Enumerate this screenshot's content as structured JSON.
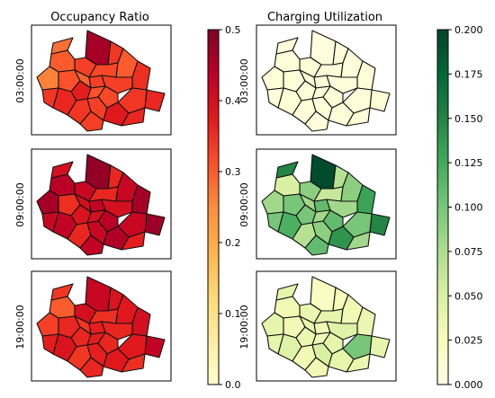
{
  "chart_data": [
    {
      "type": "heatmap",
      "title": "Occupancy Ratio",
      "row_labels": [
        "03:00:00",
        "09:00:00",
        "19:00:00"
      ],
      "colormap": "YlOrRd",
      "colorbar_range": [
        0,
        0.5
      ],
      "colorbar_ticks": [
        "0.0",
        "0.1",
        "0.2",
        "0.3",
        "0.4",
        "0.5"
      ],
      "rows": [
        [
          0.46,
          0.33,
          0.3,
          0.28,
          0.34,
          0.26,
          0.31,
          0.29,
          0.33,
          0.32,
          0.3,
          0.35,
          0.33,
          0.36,
          0.34,
          0.32,
          0.31,
          0.37,
          0.36,
          0.34,
          0.33,
          0.38,
          0.33,
          0.36,
          0.34
        ],
        [
          0.48,
          0.42,
          0.44,
          0.4,
          0.36,
          0.46,
          0.35,
          0.4,
          0.43,
          0.36,
          0.42,
          0.46,
          0.4,
          0.47,
          0.42,
          0.44,
          0.4,
          0.39,
          0.43,
          0.36,
          0.42,
          0.45,
          0.43,
          0.37,
          0.42
        ],
        [
          0.42,
          0.4,
          0.3,
          0.34,
          0.39,
          0.33,
          0.36,
          0.34,
          0.37,
          0.35,
          0.38,
          0.4,
          0.36,
          0.43,
          0.38,
          0.36,
          0.37,
          0.36,
          0.39,
          0.34,
          0.37,
          0.38,
          0.36,
          0.35,
          0.37
        ]
      ]
    },
    {
      "type": "heatmap",
      "title": "Charging Utilization",
      "row_labels": [
        "03:00:00",
        "09:00:00",
        "19:00:00"
      ],
      "colormap": "YlGn",
      "colorbar_range": [
        0,
        0.2
      ],
      "colorbar_ticks": [
        "0.000",
        "0.025",
        "0.050",
        "0.075",
        "0.100",
        "0.125",
        "0.150",
        "0.175",
        "0.200"
      ],
      "rows": [
        [
          0.005,
          0.008,
          0.006,
          0.006,
          0.007,
          0.006,
          0.008,
          0.007,
          0.008,
          0.007,
          0.006,
          0.008,
          0.007,
          0.009,
          0.007,
          0.008,
          0.006,
          0.008,
          0.009,
          0.007,
          0.006,
          0.008,
          0.007,
          0.008,
          0.007
        ],
        [
          0.195,
          0.09,
          0.05,
          0.15,
          0.07,
          0.08,
          0.1,
          0.08,
          0.11,
          0.06,
          0.09,
          0.13,
          0.08,
          0.15,
          0.1,
          0.11,
          0.08,
          0.1,
          0.12,
          0.07,
          0.09,
          0.14,
          0.11,
          0.08,
          0.1
        ],
        [
          0.02,
          0.035,
          0.03,
          0.04,
          0.025,
          0.04,
          0.03,
          0.035,
          0.03,
          0.04,
          0.03,
          0.035,
          0.045,
          0.04,
          0.1,
          0.04,
          0.03,
          0.035,
          0.045,
          0.03,
          0.05,
          0.04,
          0.03,
          0.035,
          0.04
        ]
      ]
    }
  ]
}
